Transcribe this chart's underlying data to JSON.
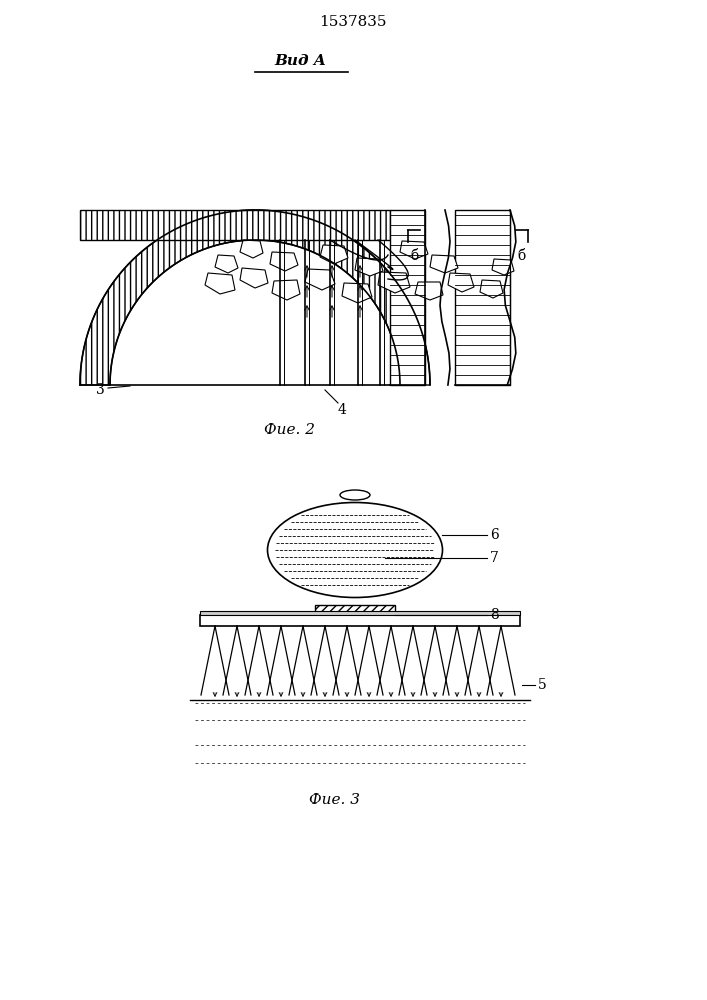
{
  "title": "1537835",
  "fig2_label": "Фие. 2",
  "fig3_label": "Фие. 3",
  "vid_a_label": "Вид A",
  "label_3": "3",
  "label_4": "4",
  "label_5": "5",
  "label_b1": "б",
  "label_b2": "б",
  "label_6": "6",
  "label_7": "7",
  "label_8": "8",
  "bg_color": "#ffffff",
  "line_color": "#000000"
}
